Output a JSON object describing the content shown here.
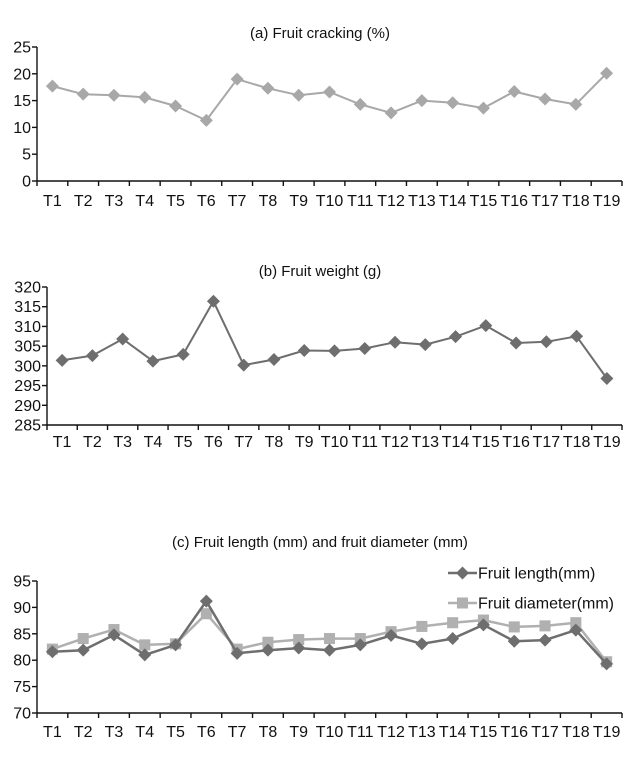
{
  "chart_data": [
    {
      "type": "line",
      "title": "(a) Fruit cracking (%)",
      "categories": [
        "T1",
        "T2",
        "T3",
        "T4",
        "T5",
        "T6",
        "T7",
        "T8",
        "T9",
        "T10",
        "T11",
        "T12",
        "T13",
        "T14",
        "T15",
        "T16",
        "T17",
        "T18",
        "T19"
      ],
      "yticks": [
        "0",
        "5",
        "10",
        "15",
        "20",
        "25"
      ],
      "ylim": [
        0,
        25
      ],
      "grid": false,
      "series": [
        {
          "color": "#a8a8a8",
          "values": [
            17.7,
            16.2,
            16.0,
            15.6,
            14.0,
            11.3,
            19.0,
            17.3,
            16.0,
            16.6,
            14.3,
            12.7,
            15.0,
            14.6,
            13.6,
            16.7,
            15.3,
            14.3,
            20.1
          ]
        }
      ]
    },
    {
      "type": "line",
      "title": "(b) Fruit weight (g)",
      "categories": [
        "T1",
        "T2",
        "T3",
        "T4",
        "T5",
        "T6",
        "T7",
        "T8",
        "T9",
        "T10",
        "T11",
        "T12",
        "T13",
        "T14",
        "T15",
        "T16",
        "T17",
        "T18",
        "T19"
      ],
      "yticks": [
        "285",
        "290",
        "295",
        "300",
        "305",
        "310",
        "315",
        "320"
      ],
      "ylim": [
        285,
        320
      ],
      "grid": false,
      "series": [
        {
          "color": "#6e6e6e",
          "values": [
            301.4,
            302.6,
            306.8,
            301.2,
            302.9,
            316.4,
            300.2,
            301.6,
            303.9,
            303.8,
            304.4,
            306.0,
            305.4,
            307.4,
            310.2,
            305.8,
            306.1,
            307.5,
            296.8
          ]
        }
      ]
    },
    {
      "type": "line",
      "title": "(c) Fruit length (mm) and fruit diameter (mm)",
      "categories": [
        "T1",
        "T2",
        "T3",
        "T4",
        "T5",
        "T6",
        "T7",
        "T8",
        "T9",
        "T10",
        "T11",
        "T12",
        "T13",
        "T14",
        "T15",
        "T16",
        "T17",
        "T18",
        "T19"
      ],
      "yticks": [
        "70",
        "75",
        "80",
        "85",
        "90",
        "95"
      ],
      "ylim": [
        70,
        95
      ],
      "grid": false,
      "legend_position": "top-right",
      "series": [
        {
          "name": "Fruit length(mm)",
          "color": "#6e6e6e",
          "marker": "diamond",
          "values": [
            81.6,
            81.9,
            84.8,
            81.0,
            82.9,
            91.2,
            81.3,
            81.9,
            82.3,
            81.9,
            82.9,
            84.7,
            83.1,
            84.1,
            86.7,
            83.6,
            83.8,
            85.7,
            79.3
          ]
        },
        {
          "name": "Fruit diameter(mm)",
          "color": "#b0b0b0",
          "marker": "square",
          "values": [
            82.1,
            84.1,
            85.8,
            82.9,
            83.1,
            88.8,
            82.1,
            83.4,
            83.9,
            84.1,
            84.1,
            85.4,
            86.4,
            87.1,
            87.6,
            86.3,
            86.5,
            87.1,
            79.7
          ]
        }
      ]
    }
  ]
}
